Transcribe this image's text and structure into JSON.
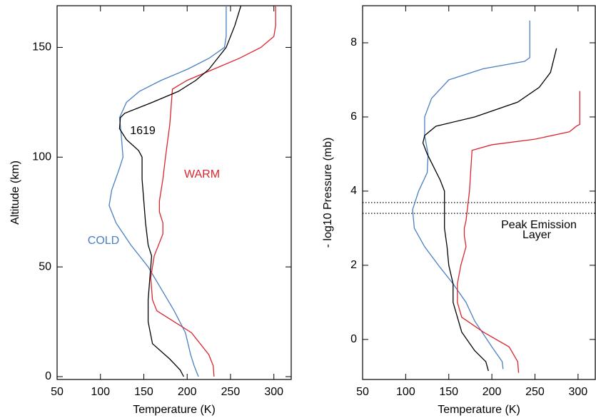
{
  "chart_data": [
    {
      "type": "line",
      "xlabel": "Temperature (K)",
      "ylabel": "Altitude (km)",
      "xlim": [
        50,
        320
      ],
      "ylim": [
        -1.3,
        169
      ],
      "xticks": [
        50,
        100,
        150,
        200,
        250,
        300
      ],
      "yticks": [
        0,
        50,
        100,
        150
      ],
      "series": [
        {
          "name": "COLD",
          "color": "#4a7fc1",
          "x": [
            213,
            208,
            204,
            198,
            185,
            170,
            155,
            135,
            118,
            110,
            113,
            122,
            126,
            124,
            122,
            130,
            145,
            170,
            200,
            225,
            243,
            245,
            245
          ],
          "values": [
            0,
            5,
            10,
            20,
            30,
            40,
            50,
            60,
            70,
            78,
            85,
            95,
            100,
            110,
            118,
            125,
            130,
            135,
            140,
            145,
            150,
            155,
            169
          ]
        },
        {
          "name": "WARM",
          "color": "#d9262e",
          "x": [
            231,
            230,
            225,
            205,
            185,
            165,
            160,
            158,
            162,
            172,
            172,
            168,
            168,
            170,
            172,
            175,
            180,
            183,
            200,
            230,
            260,
            285,
            300,
            302,
            302
          ],
          "values": [
            0,
            5,
            10,
            20,
            25,
            30,
            35,
            45,
            55,
            65,
            70,
            75,
            80,
            85,
            90,
            100,
            115,
            131,
            135,
            140,
            145,
            150,
            155,
            160,
            169
          ]
        },
        {
          "name": "1619",
          "color": "#000000",
          "x": [
            196,
            192,
            180,
            160,
            155,
            155,
            157,
            159,
            155,
            152,
            150,
            148,
            148,
            144,
            130,
            122,
            123,
            128,
            160,
            190,
            210,
            225,
            235,
            245,
            255,
            262
          ],
          "values": [
            0,
            3,
            8,
            15,
            25,
            35,
            45,
            55,
            60,
            70,
            80,
            90,
            100,
            103,
            108,
            113,
            118,
            120,
            125,
            130,
            135,
            140,
            145,
            150,
            160,
            169
          ]
        }
      ]
    },
    {
      "type": "line",
      "xlabel": "Temperature (K)",
      "ylabel": "- log10 Pressure (mb)",
      "xlim": [
        50,
        320
      ],
      "ylim": [
        -1.08,
        9
      ],
      "xticks": [
        50,
        100,
        150,
        200,
        250,
        300
      ],
      "yticks": [
        0,
        2,
        4,
        6,
        8
      ],
      "hlines": [
        3.4,
        3.69
      ],
      "annotation": "Peak Emission Layer",
      "series": [
        {
          "color": "#4a7fc1",
          "x": [
            213,
            212,
            200,
            180,
            170,
            155,
            138,
            122,
            110,
            108,
            115,
            125,
            126,
            122,
            122,
            130,
            150,
            190,
            238,
            244,
            244
          ],
          "values": [
            -0.8,
            -0.6,
            -0.2,
            0.5,
            1.0,
            1.5,
            2.0,
            2.5,
            3.0,
            3.5,
            4.0,
            4.5,
            5.0,
            5.5,
            6.0,
            6.5,
            7.0,
            7.3,
            7.5,
            7.6,
            8.6
          ]
        },
        {
          "color": "#d9262e",
          "x": [
            231,
            230,
            220,
            190,
            165,
            160,
            160,
            164,
            170,
            168,
            168,
            170,
            174,
            177,
            200,
            250,
            290,
            298,
            302,
            302
          ],
          "values": [
            -0.9,
            -0.6,
            -0.2,
            0.2,
            0.6,
            1.0,
            1.5,
            2.0,
            2.5,
            2.8,
            3.0,
            3.2,
            4.0,
            5.1,
            5.25,
            5.4,
            5.6,
            5.75,
            5.8,
            6.7
          ]
        },
        {
          "color": "#000000",
          "x": [
            196,
            193,
            180,
            165,
            155,
            155,
            150,
            148,
            145,
            145,
            140,
            125,
            120,
            122,
            135,
            180,
            230,
            255,
            268,
            275
          ],
          "values": [
            -0.85,
            -0.6,
            -0.3,
            0.2,
            1.0,
            1.5,
            2.0,
            2.5,
            3.0,
            4.0,
            4.3,
            5.0,
            5.3,
            5.5,
            5.75,
            6.0,
            6.4,
            6.8,
            7.2,
            7.85
          ]
        }
      ]
    }
  ]
}
